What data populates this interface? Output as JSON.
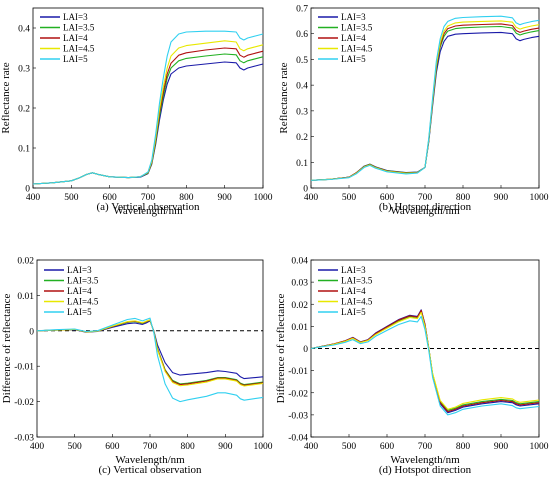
{
  "figure": {
    "colors": {
      "LAI=3": "#1a1aa8",
      "LAI=3.5": "#22b022",
      "LAI=4": "#b01010",
      "LAI=4.5": "#e8e800",
      "LAI=5": "#30d0f0"
    }
  },
  "chart_data": [
    {
      "id": "a",
      "type": "line",
      "caption": "(a) Vertical observation",
      "xlabel": "Wavelength/nm",
      "ylabel": "Reflectance rate",
      "xlim": [
        400,
        1000
      ],
      "ylim": [
        0,
        0.45
      ],
      "xticks": [
        "400",
        "500",
        "600",
        "700",
        "800",
        "900",
        "1000"
      ],
      "yticks": [
        "0",
        "0.1",
        "0.2",
        "0.3",
        "0.4"
      ],
      "ytick_values": [
        0,
        0.1,
        0.2,
        0.3,
        0.4
      ],
      "legend": "top-left",
      "zero_line": false,
      "x": [
        400,
        450,
        500,
        520,
        540,
        555,
        570,
        600,
        650,
        680,
        700,
        710,
        720,
        730,
        740,
        750,
        760,
        780,
        800,
        850,
        900,
        930,
        940,
        950,
        960,
        980,
        1000
      ],
      "series": [
        {
          "name": "LAI=3",
          "values": [
            0.01,
            0.013,
            0.018,
            0.025,
            0.034,
            0.038,
            0.034,
            0.028,
            0.026,
            0.027,
            0.036,
            0.06,
            0.11,
            0.17,
            0.22,
            0.26,
            0.285,
            0.3,
            0.305,
            0.31,
            0.315,
            0.313,
            0.3,
            0.295,
            0.3,
            0.305,
            0.31
          ]
        },
        {
          "name": "LAI=3.5",
          "values": [
            0.01,
            0.013,
            0.018,
            0.025,
            0.034,
            0.038,
            0.034,
            0.028,
            0.026,
            0.028,
            0.037,
            0.062,
            0.115,
            0.18,
            0.23,
            0.275,
            0.3,
            0.318,
            0.324,
            0.33,
            0.335,
            0.333,
            0.318,
            0.313,
            0.318,
            0.323,
            0.328
          ]
        },
        {
          "name": "LAI=4",
          "values": [
            0.01,
            0.013,
            0.018,
            0.025,
            0.034,
            0.038,
            0.034,
            0.028,
            0.026,
            0.028,
            0.038,
            0.064,
            0.12,
            0.188,
            0.24,
            0.285,
            0.312,
            0.332,
            0.338,
            0.345,
            0.35,
            0.348,
            0.332,
            0.327,
            0.332,
            0.337,
            0.342
          ]
        },
        {
          "name": "LAI=4.5",
          "values": [
            0.01,
            0.013,
            0.018,
            0.025,
            0.034,
            0.038,
            0.034,
            0.028,
            0.026,
            0.028,
            0.039,
            0.066,
            0.125,
            0.196,
            0.252,
            0.3,
            0.33,
            0.35,
            0.356,
            0.362,
            0.368,
            0.365,
            0.348,
            0.343,
            0.348,
            0.353,
            0.358
          ]
        },
        {
          "name": "LAI=5",
          "values": [
            0.01,
            0.013,
            0.018,
            0.025,
            0.034,
            0.038,
            0.034,
            0.028,
            0.026,
            0.028,
            0.04,
            0.07,
            0.135,
            0.212,
            0.275,
            0.33,
            0.365,
            0.385,
            0.39,
            0.392,
            0.392,
            0.39,
            0.375,
            0.37,
            0.375,
            0.38,
            0.385
          ]
        }
      ]
    },
    {
      "id": "b",
      "type": "line",
      "caption": "(b) Hotspot direction",
      "xlabel": "Wavelength/nm",
      "ylabel": "Reflectance rate",
      "xlim": [
        400,
        1000
      ],
      "ylim": [
        0,
        0.7
      ],
      "xticks": [
        "400",
        "500",
        "600",
        "700",
        "800",
        "900",
        "1000"
      ],
      "yticks": [
        "0",
        "0.1",
        "0.2",
        "0.3",
        "0.4",
        "0.5",
        "0.6",
        "0.7"
      ],
      "ytick_values": [
        0,
        0.1,
        0.2,
        0.3,
        0.4,
        0.5,
        0.6,
        0.7
      ],
      "legend": "top-left",
      "zero_line": false,
      "x": [
        400,
        450,
        500,
        520,
        540,
        555,
        570,
        600,
        650,
        680,
        700,
        710,
        720,
        730,
        740,
        750,
        760,
        780,
        800,
        850,
        900,
        930,
        940,
        950,
        960,
        980,
        1000
      ],
      "series": [
        {
          "name": "LAI=3",
          "values": [
            0.03,
            0.034,
            0.042,
            0.06,
            0.085,
            0.093,
            0.082,
            0.068,
            0.06,
            0.062,
            0.08,
            0.18,
            0.32,
            0.45,
            0.53,
            0.57,
            0.59,
            0.598,
            0.6,
            0.603,
            0.605,
            0.6,
            0.58,
            0.573,
            0.578,
            0.585,
            0.59
          ]
        },
        {
          "name": "LAI=3.5",
          "values": [
            0.03,
            0.034,
            0.042,
            0.06,
            0.084,
            0.092,
            0.081,
            0.067,
            0.059,
            0.061,
            0.08,
            0.185,
            0.33,
            0.465,
            0.548,
            0.59,
            0.61,
            0.62,
            0.623,
            0.626,
            0.628,
            0.622,
            0.602,
            0.595,
            0.6,
            0.607,
            0.612
          ]
        },
        {
          "name": "LAI=4",
          "values": [
            0.03,
            0.034,
            0.042,
            0.06,
            0.083,
            0.091,
            0.08,
            0.066,
            0.058,
            0.06,
            0.08,
            0.188,
            0.335,
            0.472,
            0.556,
            0.6,
            0.62,
            0.63,
            0.633,
            0.636,
            0.638,
            0.632,
            0.612,
            0.605,
            0.61,
            0.617,
            0.622
          ]
        },
        {
          "name": "LAI=4.5",
          "values": [
            0.03,
            0.034,
            0.041,
            0.058,
            0.082,
            0.09,
            0.079,
            0.065,
            0.057,
            0.059,
            0.08,
            0.19,
            0.34,
            0.48,
            0.565,
            0.61,
            0.63,
            0.642,
            0.645,
            0.648,
            0.65,
            0.645,
            0.625,
            0.618,
            0.623,
            0.63,
            0.635
          ]
        },
        {
          "name": "LAI=5",
          "values": [
            0.03,
            0.033,
            0.04,
            0.056,
            0.08,
            0.088,
            0.077,
            0.063,
            0.055,
            0.058,
            0.08,
            0.195,
            0.35,
            0.495,
            0.58,
            0.628,
            0.648,
            0.66,
            0.663,
            0.666,
            0.668,
            0.662,
            0.642,
            0.635,
            0.64,
            0.647,
            0.652
          ]
        }
      ]
    },
    {
      "id": "c",
      "type": "line",
      "caption": "(c) Vertical observation",
      "xlabel": "Wavelength/nm",
      "ylabel": "Difference of reflectance",
      "xlim": [
        400,
        1000
      ],
      "ylim": [
        -0.03,
        0.02
      ],
      "xticks": [
        "400",
        "500",
        "600",
        "700",
        "800",
        "900",
        "1000"
      ],
      "yticks": [
        "-0.03",
        "-0.02",
        "-0.01",
        "0",
        "0.01",
        "0.02"
      ],
      "ytick_values": [
        -0.03,
        -0.02,
        -0.01,
        0,
        0.01,
        0.02
      ],
      "legend": "top-left",
      "zero_line": true,
      "x": [
        400,
        450,
        500,
        530,
        560,
        600,
        640,
        660,
        680,
        690,
        700,
        710,
        720,
        740,
        760,
        780,
        800,
        850,
        880,
        900,
        930,
        940,
        950,
        1000
      ],
      "series": [
        {
          "name": "LAI=3",
          "values": [
            0.0,
            0.0002,
            0.0003,
            -0.0004,
            -0.0002,
            0.001,
            0.002,
            0.0022,
            0.0018,
            0.0022,
            0.0028,
            0.0,
            -0.004,
            -0.009,
            -0.0118,
            -0.0125,
            -0.0123,
            -0.0118,
            -0.0113,
            -0.0115,
            -0.012,
            -0.013,
            -0.0135,
            -0.013
          ]
        },
        {
          "name": "LAI=3.5",
          "values": [
            0.0,
            0.0002,
            0.0004,
            -0.0003,
            -0.0001,
            0.0012,
            0.0024,
            0.0026,
            0.0021,
            0.0025,
            0.003,
            -0.0002,
            -0.005,
            -0.011,
            -0.014,
            -0.015,
            -0.0148,
            -0.014,
            -0.0132,
            -0.0132,
            -0.0138,
            -0.0148,
            -0.0152,
            -0.0145
          ]
        },
        {
          "name": "LAI=4",
          "values": [
            0.0,
            0.0002,
            0.0004,
            -0.0003,
            -0.0001,
            0.0012,
            0.0025,
            0.0027,
            0.0022,
            0.0026,
            0.003,
            -0.0002,
            -0.0052,
            -0.0112,
            -0.0143,
            -0.0152,
            -0.015,
            -0.0142,
            -0.0134,
            -0.0134,
            -0.014,
            -0.015,
            -0.0154,
            -0.0147
          ]
        },
        {
          "name": "LAI=4.5",
          "values": [
            0.0,
            0.0002,
            0.0004,
            -0.0003,
            -0.0001,
            0.0013,
            0.0026,
            0.0028,
            0.0023,
            0.0027,
            0.0031,
            -0.0003,
            -0.0054,
            -0.0115,
            -0.0146,
            -0.0155,
            -0.0153,
            -0.0145,
            -0.0136,
            -0.0136,
            -0.0142,
            -0.0152,
            -0.0156,
            -0.0149
          ]
        },
        {
          "name": "LAI=5",
          "values": [
            0.0,
            0.0003,
            0.0005,
            -0.0002,
            0.0,
            0.0016,
            0.0032,
            0.0035,
            0.0028,
            0.0032,
            0.0036,
            -0.0005,
            -0.007,
            -0.015,
            -0.019,
            -0.02,
            -0.0195,
            -0.0185,
            -0.0175,
            -0.0175,
            -0.0182,
            -0.0192,
            -0.0196,
            -0.0188
          ]
        }
      ]
    },
    {
      "id": "d",
      "type": "line",
      "caption": "(d) Hotspot direction",
      "xlabel": "Wavelength/nm",
      "ylabel": "Difference of reflectance",
      "xlim": [
        400,
        1000
      ],
      "ylim": [
        -0.04,
        0.04
      ],
      "xticks": [
        "400",
        "500",
        "600",
        "700",
        "800",
        "900",
        "1000"
      ],
      "yticks": [
        "-0.04",
        "-0.03",
        "-0.02",
        "-0.01",
        "0",
        "0.01",
        "0.02",
        "0.03",
        "0.04"
      ],
      "ytick_values": [
        -0.04,
        -0.03,
        -0.02,
        -0.01,
        0,
        0.01,
        0.02,
        0.03,
        0.04
      ],
      "legend": "top-left",
      "zero_line": true,
      "x": [
        400,
        430,
        460,
        490,
        510,
        530,
        550,
        570,
        600,
        630,
        660,
        680,
        690,
        700,
        710,
        720,
        740,
        760,
        780,
        800,
        850,
        900,
        930,
        940,
        950,
        1000
      ],
      "series": [
        {
          "name": "LAI=3",
          "values": [
            0.0,
            0.001,
            0.002,
            0.0035,
            0.005,
            0.003,
            0.004,
            0.007,
            0.01,
            0.013,
            0.015,
            0.0145,
            0.0175,
            0.011,
            0.0,
            -0.012,
            -0.025,
            -0.029,
            -0.028,
            -0.0265,
            -0.025,
            -0.024,
            -0.0245,
            -0.0255,
            -0.026,
            -0.025
          ]
        },
        {
          "name": "LAI=3.5",
          "values": [
            0.0,
            0.001,
            0.002,
            0.0034,
            0.0048,
            0.0028,
            0.0038,
            0.0066,
            0.0095,
            0.0125,
            0.0145,
            0.014,
            0.0168,
            0.0105,
            0.0,
            -0.0115,
            -0.024,
            -0.028,
            -0.027,
            -0.0255,
            -0.024,
            -0.023,
            -0.0235,
            -0.0245,
            -0.025,
            -0.024
          ]
        },
        {
          "name": "LAI=4",
          "values": [
            0.0,
            0.001,
            0.0021,
            0.0035,
            0.0049,
            0.0029,
            0.0039,
            0.0068,
            0.0098,
            0.0128,
            0.0148,
            0.0142,
            0.0172,
            0.0108,
            0.0,
            -0.0118,
            -0.0245,
            -0.0285,
            -0.0275,
            -0.026,
            -0.0245,
            -0.0235,
            -0.024,
            -0.025,
            -0.0255,
            -0.0245
          ]
        },
        {
          "name": "LAI=4.5",
          "values": [
            0.0,
            0.0009,
            0.0019,
            0.0032,
            0.0046,
            0.0027,
            0.0036,
            0.0063,
            0.0092,
            0.012,
            0.014,
            0.0135,
            0.0163,
            0.01,
            0.0,
            -0.0112,
            -0.0235,
            -0.0275,
            -0.0265,
            -0.0248,
            -0.0232,
            -0.0222,
            -0.0228,
            -0.0238,
            -0.0243,
            -0.0233
          ]
        },
        {
          "name": "LAI=5",
          "values": [
            0.0,
            0.0008,
            0.0016,
            0.0028,
            0.004,
            0.0022,
            0.003,
            0.0055,
            0.0082,
            0.0108,
            0.0125,
            0.012,
            0.0145,
            0.0085,
            -0.001,
            -0.013,
            -0.026,
            -0.03,
            -0.029,
            -0.0275,
            -0.026,
            -0.025,
            -0.0258,
            -0.0268,
            -0.0272,
            -0.0262
          ]
        }
      ]
    }
  ]
}
